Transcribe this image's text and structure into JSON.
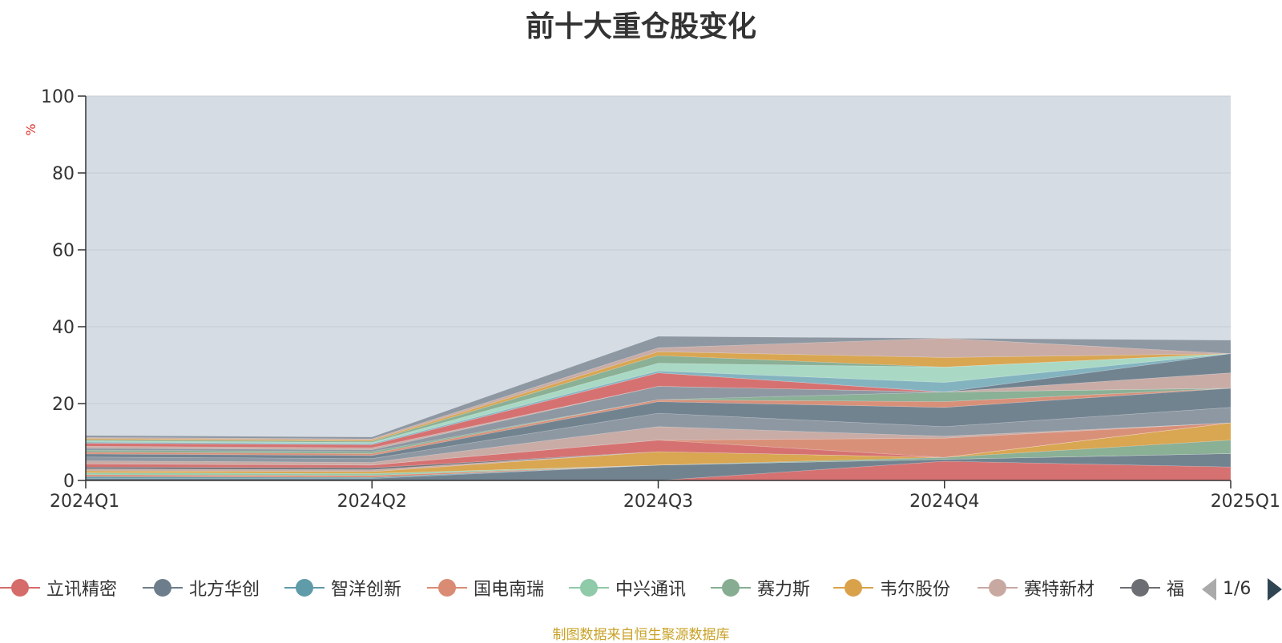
{
  "chart_data": {
    "type": "area",
    "stacked": true,
    "title": "前十大重仓股变化",
    "ylabel": "%",
    "xlabel": "",
    "categories": [
      "2024Q1",
      "2024Q2",
      "2024Q3",
      "2024Q4",
      "2025Q1"
    ],
    "ylim": [
      0,
      100
    ],
    "yticks": [
      0,
      20,
      40,
      60,
      80,
      100
    ],
    "grid": true,
    "plot_background": "#d6dce4",
    "series": [
      {
        "name": "立讯精密",
        "color": "#d56c6a",
        "values": [
          0,
          0,
          0,
          5,
          3.5
        ]
      },
      {
        "name": "北方华创",
        "color": "#6d7d8b",
        "values": [
          0.5,
          0.5,
          4,
          0.5,
          3.5
        ]
      },
      {
        "name": "智洋创新",
        "color": "#5f9ba8",
        "values": [
          0.5,
          0.3,
          0,
          0,
          0
        ]
      },
      {
        "name": "国电南瑞",
        "color": "#d98b73",
        "values": [
          0.5,
          0.5,
          0,
          0,
          0
        ]
      },
      {
        "name": "中兴通讯",
        "color": "#8fcaa9",
        "values": [
          0.5,
          0.5,
          0,
          0,
          0
        ]
      },
      {
        "name": "赛力斯",
        "color": "#86ad91",
        "values": [
          0,
          0,
          0,
          0.5,
          3.5
        ]
      },
      {
        "name": "韦尔股份",
        "color": "#d9a24a",
        "values": [
          0.5,
          0.5,
          3.5,
          0,
          4.5
        ]
      },
      {
        "name": "赛特新材",
        "color": "#c8a9a2",
        "values": [
          0.5,
          0.5,
          0,
          0,
          0
        ]
      },
      {
        "name": "福",
        "color": "#6d6e73",
        "values": [
          0.5,
          0.5,
          0,
          0,
          0
        ]
      },
      {
        "name": "",
        "color": "#d56c6a",
        "values": [
          0.8,
          0.7,
          3,
          0,
          0
        ]
      },
      {
        "name": "",
        "color": "#d98b73",
        "values": [
          0,
          0,
          0,
          5,
          0
        ]
      },
      {
        "name": "",
        "color": "#c8a9a2",
        "values": [
          0.8,
          0.7,
          3.5,
          0.5,
          0
        ]
      },
      {
        "name": "",
        "color": "#8a939e",
        "values": [
          1,
          1,
          3.5,
          2.5,
          4
        ]
      },
      {
        "name": "",
        "color": "#6d7d8b",
        "values": [
          0.8,
          0.8,
          3,
          5,
          5
        ]
      },
      {
        "name": "",
        "color": "#d98b73",
        "values": [
          0.5,
          0.5,
          0.5,
          1.5,
          0
        ]
      },
      {
        "name": "",
        "color": "#86ad91",
        "values": [
          0.5,
          0.5,
          0,
          2.5,
          0
        ]
      },
      {
        "name": "",
        "color": "#8a939e",
        "values": [
          0.5,
          0.5,
          3.5,
          0,
          0
        ]
      },
      {
        "name": "",
        "color": "#c8a9a2",
        "values": [
          0.5,
          0.5,
          0,
          0,
          4
        ]
      },
      {
        "name": "",
        "color": "#d56c6a",
        "values": [
          0.8,
          0.8,
          3.5,
          0,
          0
        ]
      },
      {
        "name": "",
        "color": "#6d7d8b",
        "values": [
          0,
          0,
          0,
          0,
          5
        ]
      },
      {
        "name": "",
        "color": "#7fb0be",
        "values": [
          0.3,
          0.3,
          0.5,
          2.5,
          0
        ]
      },
      {
        "name": "",
        "color": "#a6d8c2",
        "values": [
          0.3,
          0.3,
          2,
          4,
          0
        ]
      },
      {
        "name": "",
        "color": "#86ad91",
        "values": [
          0.3,
          0.3,
          2,
          0,
          0
        ]
      },
      {
        "name": "",
        "color": "#d9a24a",
        "values": [
          0.3,
          0.3,
          1,
          2.5,
          0
        ]
      },
      {
        "name": "",
        "color": "#c8a9a2",
        "values": [
          0.3,
          0.3,
          1,
          5,
          0
        ]
      },
      {
        "name": "",
        "color": "#8a939e",
        "values": [
          0.5,
          0.5,
          3,
          0,
          3.5
        ]
      }
    ]
  },
  "legend": {
    "visible_count": 9,
    "page": "1/6"
  },
  "source_note": "制图数据来自恒生聚源数据库"
}
